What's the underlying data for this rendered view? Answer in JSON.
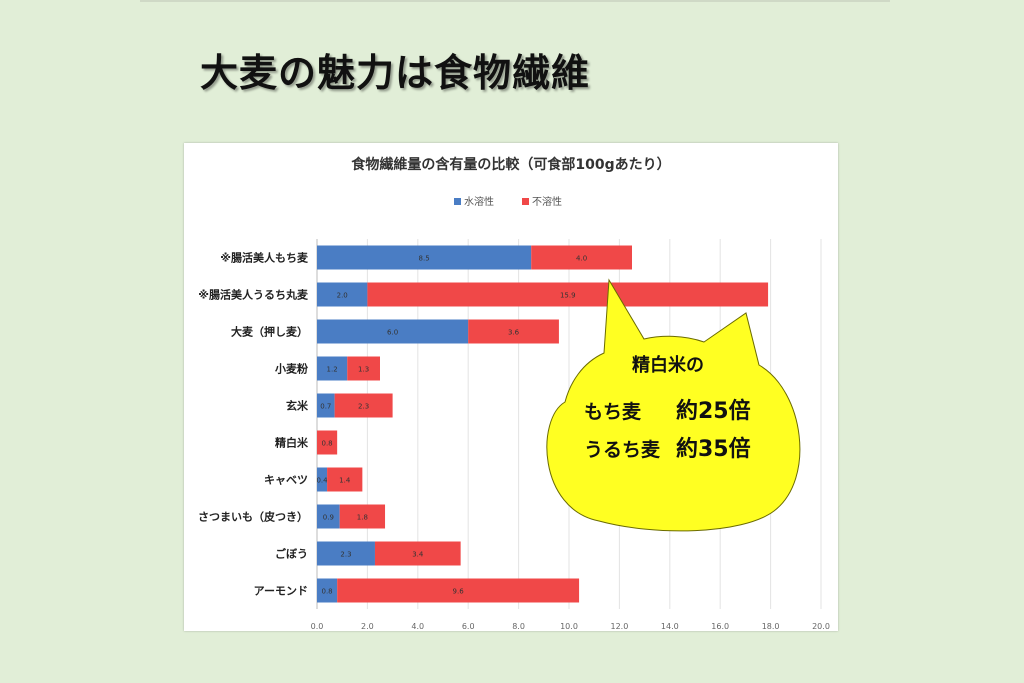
{
  "slide": {
    "title": "大麦の魅力は食物繊維"
  },
  "chart_data": {
    "type": "bar",
    "orientation": "horizontal",
    "stacked": true,
    "title": "食物繊維量の含有量の比較（可食部100gあたり）",
    "categories": [
      "※腸活美人もち麦",
      "※腸活美人うるち丸麦",
      "大麦（押し麦）",
      "小麦粉",
      "玄米",
      "精白米",
      "キャベツ",
      "さつまいも（皮つき）",
      "ごぼう",
      "アーモンド"
    ],
    "series": [
      {
        "name": "水溶性",
        "color": "#4a7dc4",
        "values": [
          8.5,
          2.0,
          6.0,
          1.2,
          0.7,
          null,
          0.4,
          0.9,
          2.3,
          0.8
        ],
        "labels": [
          "8.5",
          "2.0",
          "6.0",
          "1.2",
          "0.7",
          "",
          "0.4",
          "0.9",
          "2.3",
          "0.8"
        ]
      },
      {
        "name": "不溶性",
        "color": "#f04848",
        "values": [
          4.0,
          15.9,
          3.6,
          1.3,
          2.3,
          0.8,
          1.4,
          1.8,
          3.4,
          9.6
        ],
        "labels": [
          "4.0",
          "15.9",
          "3.6",
          "1.3",
          "2.3",
          "0.8",
          "1.4",
          "1.8",
          "3.4",
          "9.6"
        ]
      }
    ],
    "xlim": [
      0,
      20
    ],
    "xticks": [
      "0.0",
      "2.0",
      "4.0",
      "6.0",
      "8.0",
      "10.0",
      "12.0",
      "14.0",
      "16.0",
      "18.0",
      "20.0"
    ],
    "grid": true,
    "legend_position": "top"
  },
  "callout": {
    "line1": "精白米の",
    "rows": [
      {
        "label": "もち麦",
        "value": "約25倍"
      },
      {
        "label": "うるち麦",
        "value": "約35倍"
      }
    ],
    "color": "#ffff22"
  }
}
